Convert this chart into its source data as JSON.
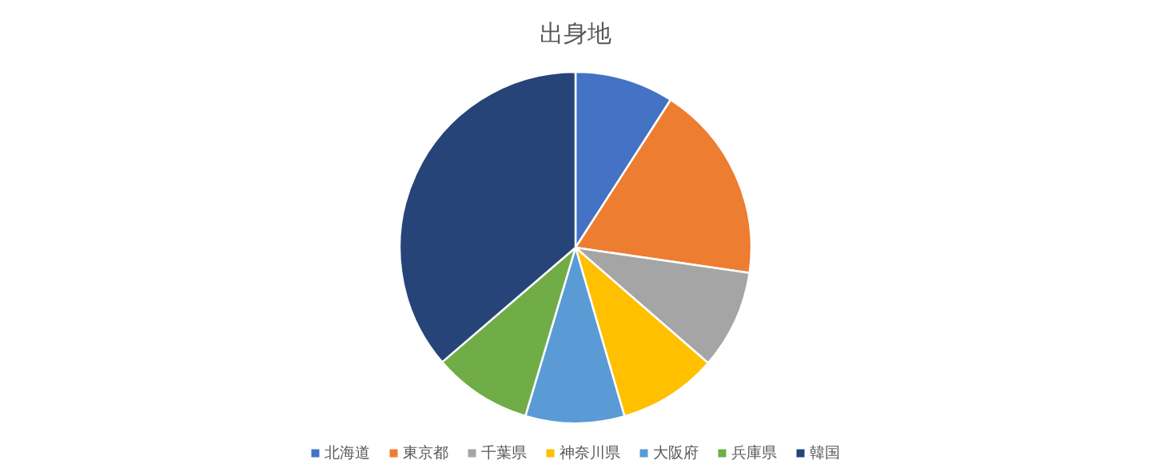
{
  "chart_data": {
    "type": "pie",
    "title": "出身地",
    "categories": [
      "北海道",
      "東京都",
      "千葉県",
      "神奈川県",
      "大阪府",
      "兵庫県",
      "韓国"
    ],
    "values": [
      9.1,
      18.2,
      9.1,
      9.1,
      9.1,
      9.1,
      36.3
    ],
    "colors": [
      "#4472c4",
      "#ed7d31",
      "#a5a5a5",
      "#ffc000",
      "#5b9bd5",
      "#70ad47",
      "#264478"
    ],
    "legend": "bottom"
  }
}
